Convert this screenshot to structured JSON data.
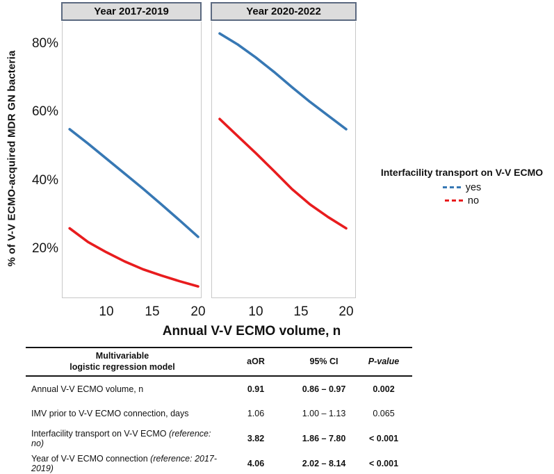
{
  "figure": {
    "y_axis_title": "% of V-V ECMO-acquired MDR GN bacteria",
    "x_axis_title": "Annual V-V ECMO volume, n",
    "y_tick_labels": [
      "80%",
      "60%",
      "40%",
      "20%"
    ],
    "x_tick_labels": [
      "10",
      "15",
      "20"
    ],
    "facet_labels": [
      "Year 2017-2019",
      "Year 2020-2022"
    ],
    "legend": {
      "title": "Interfacility transport on V-V ECMO",
      "items": [
        {
          "label": "yes",
          "color": "#3778B4"
        },
        {
          "label": "no",
          "color": "#E81C1E"
        }
      ]
    }
  },
  "chart_data": {
    "type": "line",
    "title": "",
    "xlabel": "Annual V-V ECMO volume, n",
    "ylabel": "% of V-V ECMO-acquired MDR GN bacteria",
    "x": [
      6,
      8,
      10,
      12,
      14,
      16,
      18,
      20
    ],
    "xlim": [
      5.2,
      20.6
    ],
    "ylim": [
      5,
      86
    ],
    "x_ticks": [
      10,
      15,
      20
    ],
    "y_ticks": [
      20,
      40,
      60,
      80
    ],
    "y_tick_format": "percent",
    "grid": false,
    "legend_title": "Interfacility transport on V-V ECMO",
    "legend_position": "right",
    "facets": [
      {
        "label": "Year 2017-2019",
        "series": [
          {
            "name": "yes",
            "color": "#3778B4",
            "values": [
              55,
              50.8,
              46.4,
              42,
              37.6,
              33,
              28.3,
              23.5
            ]
          },
          {
            "name": "no",
            "color": "#E81C1E",
            "values": [
              26,
              22,
              19,
              16.3,
              14,
              12.2,
              10.5,
              9
            ]
          }
        ]
      },
      {
        "label": "Year 2020-2022",
        "series": [
          {
            "name": "yes",
            "color": "#3778B4",
            "values": [
              83,
              79.8,
              76,
              71.8,
              67.3,
              63,
              59,
              55
            ]
          },
          {
            "name": "no",
            "color": "#E81C1E",
            "values": [
              58,
              53,
              48,
              42.8,
              37.5,
              33,
              29.3,
              26
            ]
          }
        ]
      }
    ]
  },
  "table": {
    "header": {
      "model_line1": "Multivariable",
      "model_line2": "logistic regression model",
      "aor": "aOR",
      "ci": "95% CI",
      "p": "P-value"
    },
    "rows": [
      {
        "label": "Annual V-V ECMO volume, n",
        "ref": "",
        "aor": "0.91",
        "ci": "0.86 – 0.97",
        "p": "0.002",
        "bold": true
      },
      {
        "label": "IMV prior to V-V ECMO connection, days",
        "ref": "",
        "aor": "1.06",
        "ci": "1.00 – 1.13",
        "p": "0.065",
        "bold": false
      },
      {
        "label": "Interfacility transport on V-V ECMO",
        "ref": "(reference: no)",
        "aor": "3.82",
        "ci": "1.86 – 7.80",
        "p": "< 0.001",
        "bold": true
      },
      {
        "label": "Year of V-V ECMO connection",
        "ref": "(reference: 2017-2019)",
        "aor": "4.06",
        "ci": "2.02 – 8.14",
        "p": "< 0.001",
        "bold": true
      }
    ]
  },
  "colors": {
    "yes_line": "#3778B4",
    "no_line": "#E81C1E",
    "facet_header_bg": "#DCDCDC",
    "facet_header_border": "#5B6980",
    "panel_border": "#C8C8C8"
  }
}
